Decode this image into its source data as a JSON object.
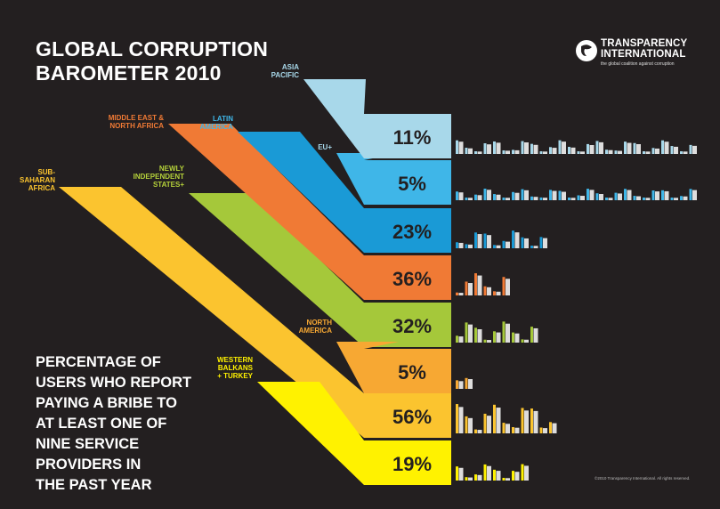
{
  "title_lines": [
    "GLOBAL CORRUPTION",
    "BAROMETER 2010"
  ],
  "subtitle_lines": [
    "PERCENTAGE OF",
    "USERS WHO REPORT",
    "PAYING A BRIBE TO",
    "AT LEAST ONE OF",
    "NINE SERVICE",
    "PROVIDERS IN",
    "THE PAST YEAR"
  ],
  "logo": {
    "line1": "TRANSPARENCY",
    "line2": "INTERNATIONAL",
    "tagline": "the global coalition against corruption"
  },
  "copyright": "©2010 Transparency International. All rights reserved.",
  "chart_data": {
    "type": "bar",
    "categories": [
      "ASIA PACIFIC",
      "EU+",
      "LATIN AMERICA",
      "MIDDLE EAST & NORTH AFRICA",
      "NEWLY INDEPENDENT STATES+",
      "NORTH AMERICA",
      "SUB-SAHARAN AFRICA",
      "WESTERN BALKANS + TURKEY"
    ],
    "category_label_lines": [
      [
        "ASIA",
        "PACIFIC"
      ],
      [
        "EU+"
      ],
      [
        "LATIN",
        "AMERICA"
      ],
      [
        "MIDDLE EAST &",
        "NORTH AFRICA"
      ],
      [
        "NEWLY",
        "INDEPENDENT",
        "STATES+"
      ],
      [
        "NORTH",
        "AMERICA"
      ],
      [
        "SUB-",
        "SAHARAN",
        "AFRICA"
      ],
      [
        "WESTERN",
        "BALKANS",
        "+ TURKEY"
      ]
    ],
    "values": [
      11,
      5,
      23,
      36,
      32,
      5,
      56,
      19
    ],
    "value_labels": [
      "11%",
      "5%",
      "23%",
      "36%",
      "32%",
      "5%",
      "56%",
      "19%"
    ],
    "value_unit": "%",
    "colors": [
      "#a8d8ea",
      "#3fb6e8",
      "#1a9ad6",
      "#f07a35",
      "#a5c83a",
      "#f7a833",
      "#fbc42f",
      "#fff200"
    ],
    "label_colors": [
      "#a8d8ea",
      "#a8d8ea",
      "#3fb6e8",
      "#f07a35",
      "#b5d13a",
      "#f7a833",
      "#fbc42f",
      "#fff200"
    ],
    "country_bar_counts": [
      26,
      26,
      10,
      6,
      9,
      2,
      11,
      8
    ],
    "title": "GLOBAL CORRUPTION BAROMETER 2010",
    "legend": "none",
    "grid": false
  }
}
